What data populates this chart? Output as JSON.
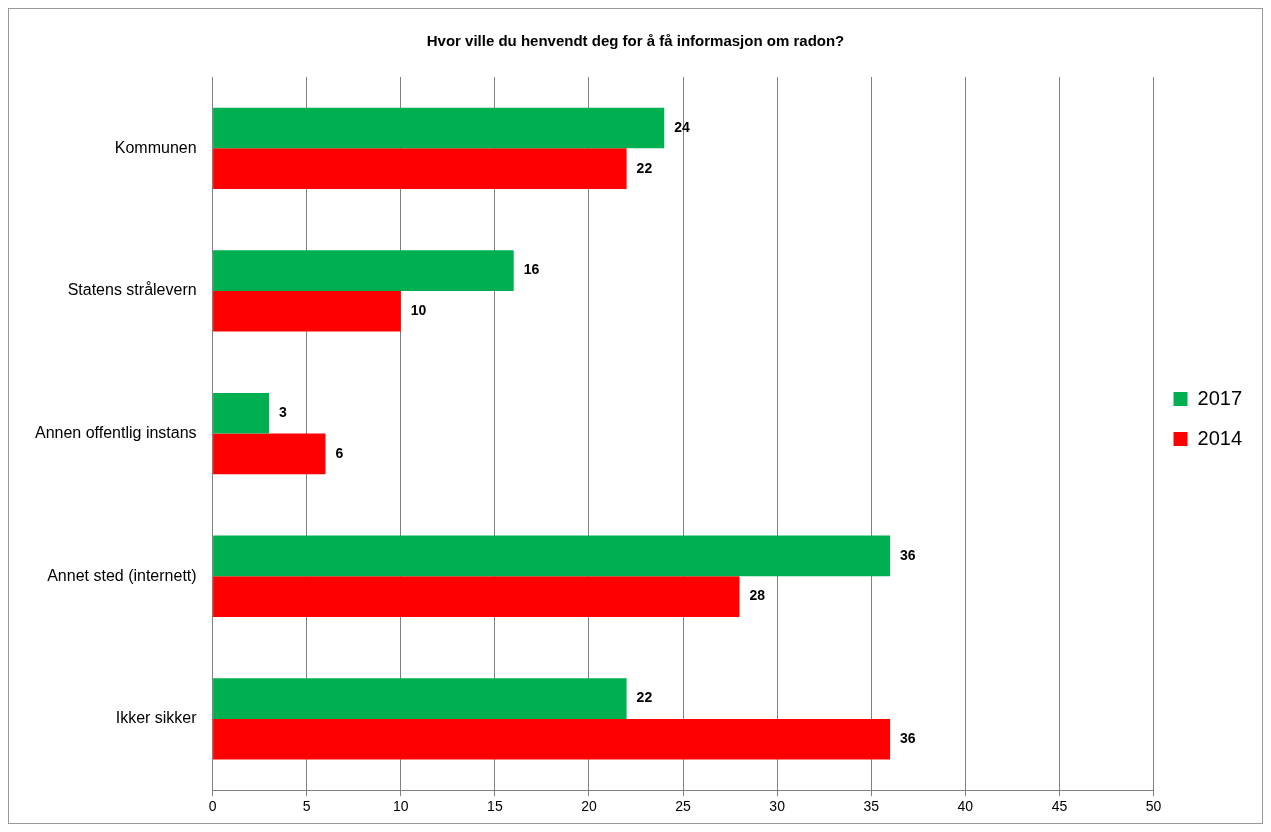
{
  "chart_data": {
    "type": "bar",
    "orientation": "horizontal",
    "title": "Hvor ville du henvendt deg for å få informasjon om radon?",
    "categories": [
      "Kommunen",
      "Statens strålevern",
      "Annen offentlig instans",
      "Annet sted (internett)",
      "Ikker sikker"
    ],
    "series": [
      {
        "name": "2017",
        "color": "#00b050",
        "values": [
          24,
          16,
          3,
          36,
          22
        ]
      },
      {
        "name": "2014",
        "color": "#ff0000",
        "values": [
          22,
          10,
          6,
          28,
          36
        ]
      }
    ],
    "xlim": [
      0,
      50
    ],
    "xticks": [
      0,
      5,
      10,
      15,
      20,
      25,
      30,
      35,
      40,
      45,
      50
    ],
    "grid": "x",
    "legend": "right",
    "data_labels": true
  }
}
